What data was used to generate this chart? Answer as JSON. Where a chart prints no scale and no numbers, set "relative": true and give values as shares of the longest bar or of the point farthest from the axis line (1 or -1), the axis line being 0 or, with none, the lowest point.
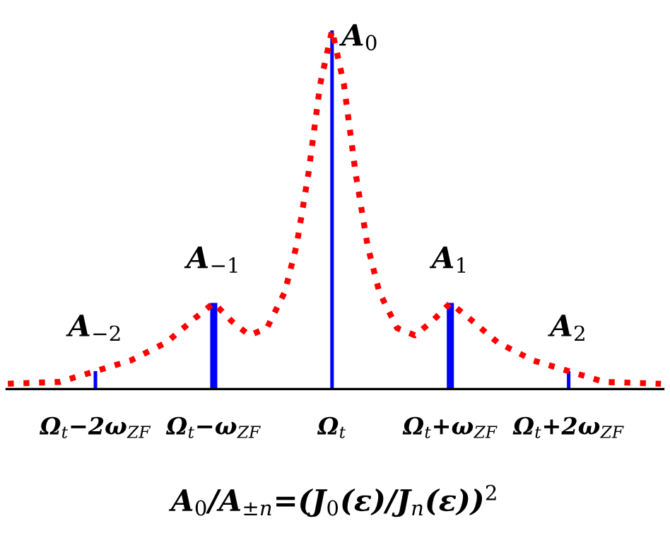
{
  "chart_data": {
    "type": "bar",
    "relative": true,
    "xlim": [
      -2.75,
      2.8
    ],
    "xticks": [
      {
        "value": -2,
        "label": "Ω$_{t}$−2ω$_{ZF}$"
      },
      {
        "value": -1,
        "label": "Ω$_{t}$−ω$_{ZF}$"
      },
      {
        "value": 0,
        "label": "Ω$_{t}$"
      },
      {
        "value": 1,
        "label": "Ω$_{t}$+ω$_{ZF}$"
      },
      {
        "value": 2,
        "label": "Ω$_{t}$+2ω$_{ZF}$"
      }
    ],
    "series": [
      {
        "color": "#0000ff",
        "x": [
          -2,
          -1,
          0,
          1,
          2
        ],
        "values": [
          0.05,
          0.24,
          1,
          0.24,
          0.05
        ]
      },
      {
        "type": "line",
        "color": "#ff0000",
        "line_style": "dotted",
        "x": [
          -2.74,
          -2.3,
          -2,
          -1.7,
          -1.4,
          -1.15,
          -1,
          -0.85,
          -0.7,
          -0.55,
          -0.4,
          -0.3,
          -0.2,
          -0.1,
          0,
          0.1,
          0.2,
          0.3,
          0.4,
          0.55,
          0.7,
          0.85,
          1,
          1.15,
          1.4,
          1.7,
          2,
          2.3,
          2.78
        ],
        "values": [
          0.015,
          0.02,
          0.05,
          0.08,
          0.13,
          0.2,
          0.24,
          0.19,
          0.15,
          0.17,
          0.27,
          0.4,
          0.6,
          0.85,
          1,
          0.85,
          0.6,
          0.4,
          0.27,
          0.17,
          0.15,
          0.19,
          0.24,
          0.2,
          0.13,
          0.08,
          0.05,
          0.02,
          0.015
        ]
      }
    ],
    "annotations": [
      {
        "text": "A$_{−2}$",
        "x": -2,
        "y": 0.05
      },
      {
        "text": "A$_{−1}$",
        "x": -1,
        "y": 0.24
      },
      {
        "text": "A$_{0}$",
        "x": 0,
        "y": 1
      },
      {
        "text": "A$_{1}$",
        "x": 1,
        "y": 0.24
      },
      {
        "text": "A$_{2}$",
        "x": 2,
        "y": 0.05
      },
      "A$_{0}$/A$_{±n}$=(J$_{0}$(ε)/J$_{n}$(ε))$^{2}$"
    ],
    "grid": false,
    "legend": false
  }
}
